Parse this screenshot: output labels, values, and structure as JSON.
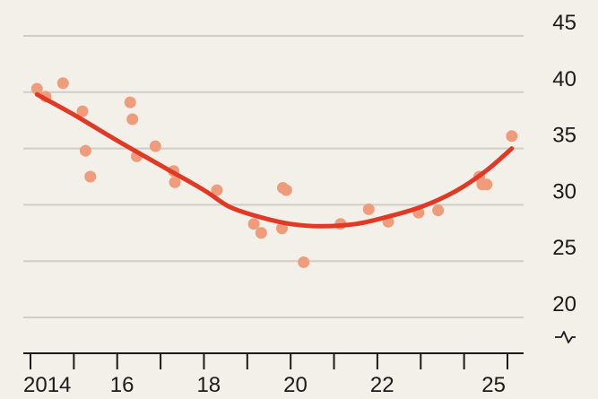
{
  "chart_data": {
    "type": "scatter",
    "title": "",
    "xlabel": "",
    "ylabel": "",
    "xlim": [
      2013.9,
      2025.3
    ],
    "ylim": [
      17,
      46
    ],
    "y_ticks": [
      20,
      25,
      30,
      35,
      40,
      45
    ],
    "y_tick_labels": [
      "20",
      "25",
      "30",
      "35",
      "40",
      "45"
    ],
    "x_ticks": [
      2014,
      2016,
      2018,
      2020,
      2022,
      2025
    ],
    "x_tick_labels": [
      "2014",
      "16",
      "18",
      "20",
      "22",
      "25"
    ],
    "x_minor_ticks": [
      2015,
      2017,
      2019,
      2021,
      2023,
      2024
    ],
    "y_axis_position": "right",
    "grid": "horizontal",
    "y_axis_break": true,
    "colors": {
      "background": "#f2f0e9",
      "grid": "#cfcdc6",
      "points": "#ee9c7b",
      "trend": "#e03a26",
      "axis": "#1a1a1a"
    },
    "series": [
      {
        "type": "scatter",
        "points": [
          {
            "x": 2014.15,
            "y": 40.3
          },
          {
            "x": 2014.35,
            "y": 39.6
          },
          {
            "x": 2014.75,
            "y": 40.8
          },
          {
            "x": 2015.2,
            "y": 38.3
          },
          {
            "x": 2015.27,
            "y": 34.8
          },
          {
            "x": 2015.38,
            "y": 32.5
          },
          {
            "x": 2016.3,
            "y": 39.1
          },
          {
            "x": 2016.35,
            "y": 37.6
          },
          {
            "x": 2016.45,
            "y": 34.3
          },
          {
            "x": 2016.88,
            "y": 35.2
          },
          {
            "x": 2017.3,
            "y": 33.0
          },
          {
            "x": 2017.33,
            "y": 32.0
          },
          {
            "x": 2018.3,
            "y": 31.3
          },
          {
            "x": 2019.15,
            "y": 28.3
          },
          {
            "x": 2019.32,
            "y": 27.5
          },
          {
            "x": 2019.8,
            "y": 27.9
          },
          {
            "x": 2019.82,
            "y": 31.5
          },
          {
            "x": 2019.9,
            "y": 31.3
          },
          {
            "x": 2020.3,
            "y": 24.9
          },
          {
            "x": 2021.15,
            "y": 28.3
          },
          {
            "x": 2021.8,
            "y": 29.6
          },
          {
            "x": 2022.25,
            "y": 28.5
          },
          {
            "x": 2022.95,
            "y": 29.3
          },
          {
            "x": 2023.4,
            "y": 29.5
          },
          {
            "x": 2024.35,
            "y": 32.5
          },
          {
            "x": 2024.42,
            "y": 31.8
          },
          {
            "x": 2024.52,
            "y": 31.8
          },
          {
            "x": 2025.1,
            "y": 36.1
          }
        ]
      },
      {
        "type": "line",
        "points": [
          {
            "x": 2014.15,
            "y": 39.8
          },
          {
            "x": 2015.0,
            "y": 38.0
          },
          {
            "x": 2016.0,
            "y": 35.7
          },
          {
            "x": 2017.0,
            "y": 33.5
          },
          {
            "x": 2018.0,
            "y": 31.3
          },
          {
            "x": 2018.6,
            "y": 29.8
          },
          {
            "x": 2019.3,
            "y": 28.9
          },
          {
            "x": 2020.0,
            "y": 28.3
          },
          {
            "x": 2020.7,
            "y": 28.1
          },
          {
            "x": 2021.5,
            "y": 28.3
          },
          {
            "x": 2022.2,
            "y": 28.9
          },
          {
            "x": 2023.0,
            "y": 29.8
          },
          {
            "x": 2023.8,
            "y": 31.2
          },
          {
            "x": 2024.5,
            "y": 33.0
          },
          {
            "x": 2025.1,
            "y": 35.0
          }
        ]
      }
    ]
  }
}
